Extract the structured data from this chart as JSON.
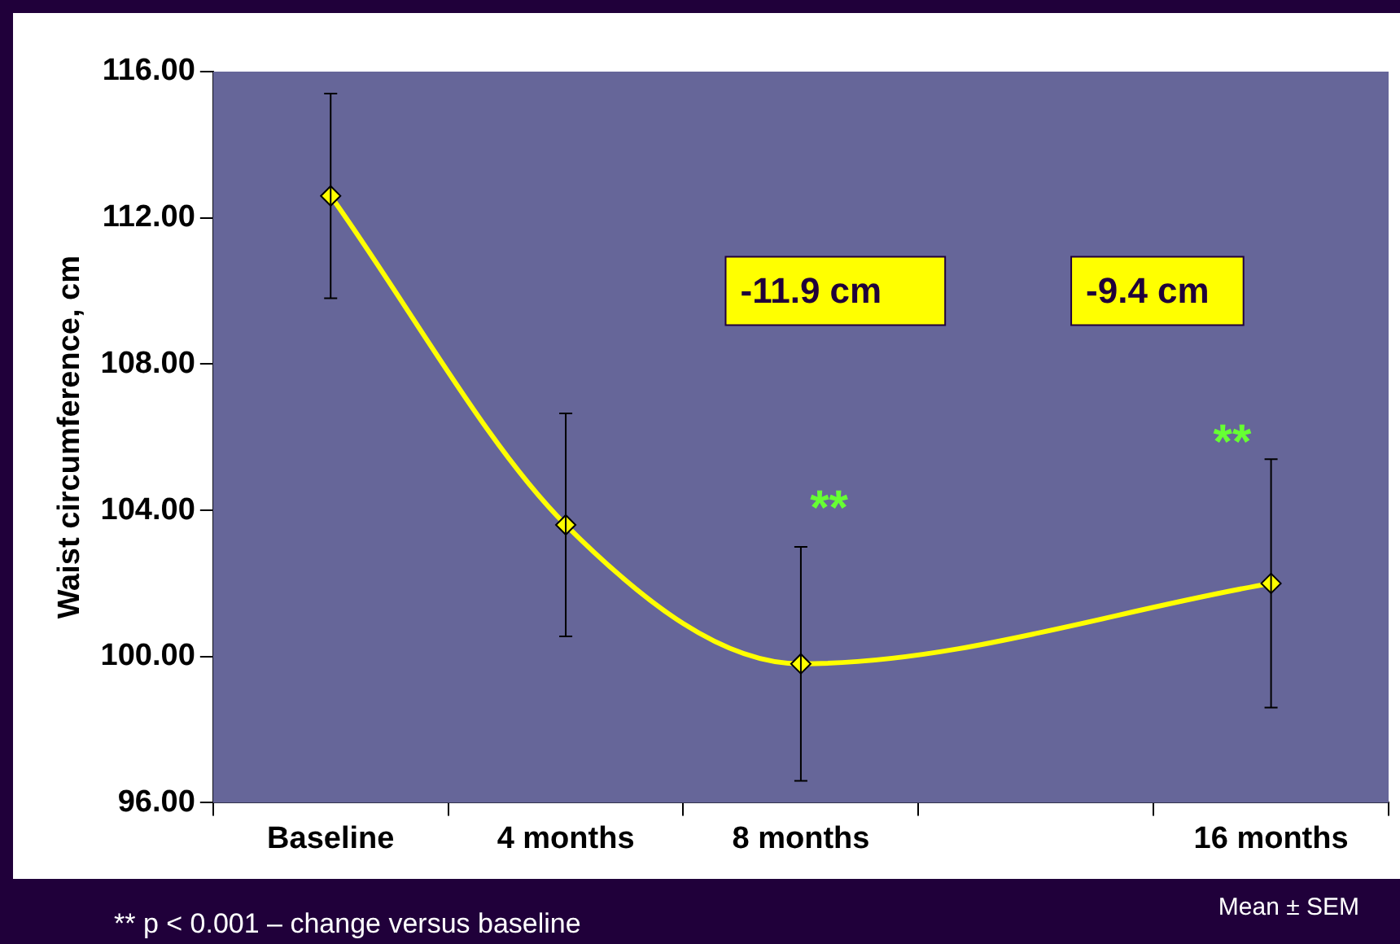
{
  "chart_data": {
    "type": "line",
    "ylabel": "Waist circumference, cm",
    "categories": [
      "Baseline",
      "4 months",
      "8 months",
      null,
      "16 months"
    ],
    "series": [
      {
        "color": "#ffff00",
        "values": [
          112.6,
          103.6,
          99.8,
          null,
          102.0
        ],
        "errors": [
          2.8,
          3.05,
          3.2,
          null,
          3.4
        ]
      }
    ],
    "ylim": [
      96,
      116
    ],
    "yticks": [
      {
        "value": 96,
        "label": "96.00"
      },
      {
        "value": 100,
        "label": "100.00"
      },
      {
        "value": 104,
        "label": "104.00"
      },
      {
        "value": 108,
        "label": "108.00"
      },
      {
        "value": 112,
        "label": "112.00"
      },
      {
        "value": 116,
        "label": "116.00"
      }
    ],
    "grid": false,
    "legend": false,
    "marker": "diamond",
    "line_style": "solid",
    "annotations": [
      "-11.9 cm",
      "-9.4 cm",
      "**",
      "**",
      "** p < 0.001 – change versus baseline",
      "Mean ± SEM"
    ]
  }
}
